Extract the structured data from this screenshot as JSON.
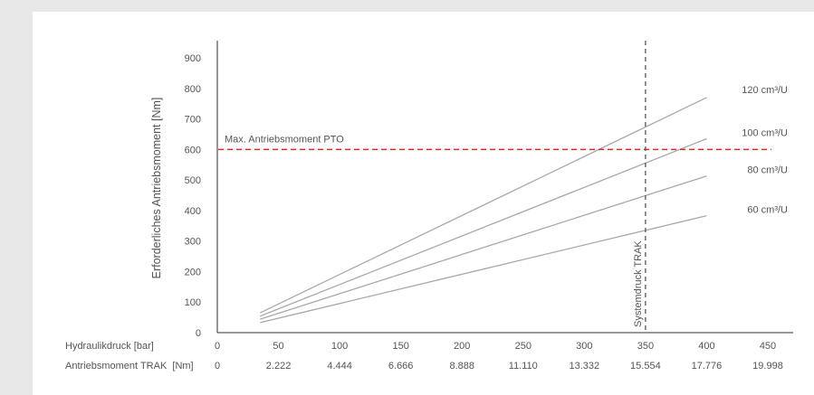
{
  "chart_data": {
    "type": "line",
    "ylabel": "Erforderliches Antriebsmoment [Nm]",
    "xlabel": "Hydraulikdruck [bar]",
    "x2label": "Antriebsmoment TRAK  [Nm]",
    "xlim": [
      0,
      450
    ],
    "ylim": [
      0,
      900
    ],
    "x_ticks": [
      "0",
      "50",
      "100",
      "150",
      "200",
      "250",
      "300",
      "350",
      "400",
      "450"
    ],
    "x2_ticks": [
      "0",
      "2.222",
      "4.444",
      "6.666",
      "8.888",
      "11.110",
      "13.332",
      "15.554",
      "17.776",
      "19.998"
    ],
    "y_ticks": [
      "0",
      "100",
      "200",
      "300",
      "400",
      "500",
      "600",
      "700",
      "800",
      "900"
    ],
    "series": [
      {
        "name": "120 cm³/U",
        "x": [
          35,
          400
        ],
        "y": [
          65,
          770
        ]
      },
      {
        "name": "100 cm³/U",
        "x": [
          35,
          400
        ],
        "y": [
          54,
          635
        ]
      },
      {
        "name": "80 cm³/U",
        "x": [
          35,
          400
        ],
        "y": [
          44,
          513
        ]
      },
      {
        "name": "60 cm³/U",
        "x": [
          35,
          400
        ],
        "y": [
          33,
          383
        ]
      }
    ],
    "hline": {
      "y": 600,
      "label": "Max. Antriebsmoment PTO",
      "color": "#e0282d"
    },
    "vline": {
      "x": 350,
      "label": "Systemdruck TRAK",
      "color": "#555555"
    },
    "series_color": "#a8a8a8",
    "grid": false
  }
}
